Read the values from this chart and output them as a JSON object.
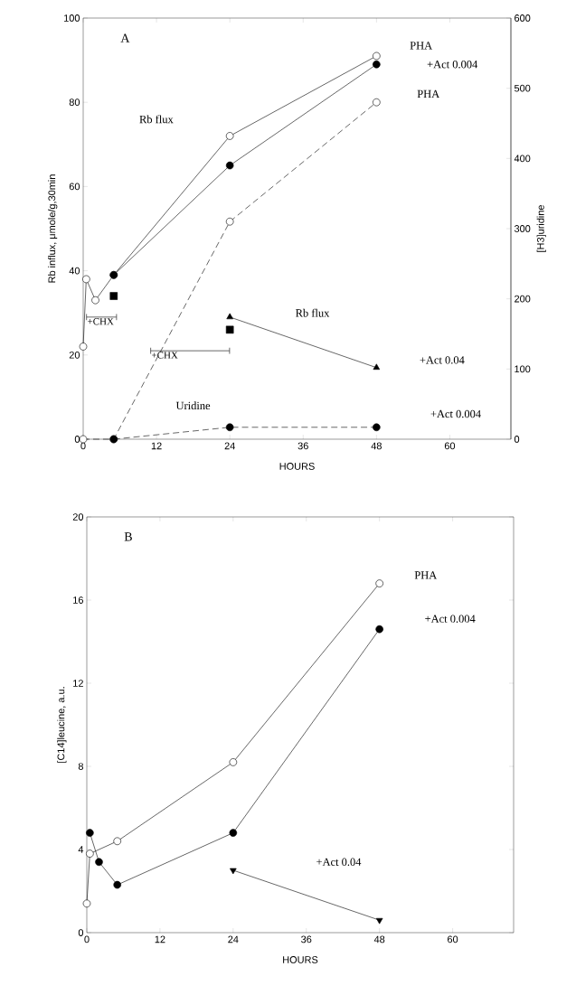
{
  "chart_data": [
    {
      "type": "line",
      "title": "A",
      "xlabel": "HOURS",
      "ylabel": "Rb influx, μmole/g,30min",
      "y2label": "[H3]uridine",
      "xlim": [
        0,
        70
      ],
      "xticks": [
        0,
        12,
        24,
        36,
        48,
        60
      ],
      "ylim": [
        0,
        100
      ],
      "yticks": [
        0,
        20,
        40,
        60,
        80,
        100
      ],
      "y2lim": [
        0,
        600
      ],
      "y2ticks": [
        0,
        100,
        200,
        300,
        400,
        500,
        600
      ],
      "grid": false,
      "series": [
        {
          "color": "#000000",
          "marker": "circle_open",
          "line_style": "solid",
          "x": [
            0,
            0.5,
            2,
            5,
            24,
            48
          ],
          "values": [
            22,
            38,
            33,
            39,
            72,
            91
          ]
        },
        {
          "color": "#000000",
          "marker": "circle",
          "line_style": "solid",
          "x": [
            5,
            24,
            48
          ],
          "values": [
            39,
            65,
            89
          ]
        },
        {
          "type": "scatter",
          "color": "#000000",
          "marker": "square",
          "x": [
            5,
            24
          ],
          "values": [
            34,
            26
          ]
        },
        {
          "color": "#000000",
          "marker": "triangle",
          "line_style": "solid",
          "x": [
            24,
            48
          ],
          "values": [
            29,
            17
          ]
        },
        {
          "axis": "y2",
          "color": "#000000",
          "marker": "circle_open",
          "line_style": "dashed",
          "x": [
            0,
            5,
            24,
            48
          ],
          "values": [
            0,
            0,
            310,
            480
          ]
        },
        {
          "axis": "y2",
          "color": "#000000",
          "marker": "circle",
          "line_style": "dashed",
          "x": [
            5,
            24,
            48
          ],
          "values": [
            0,
            17,
            17
          ]
        },
        {
          "name": "+CHX",
          "color": "#000000",
          "marker": "none",
          "line_style": "solid",
          "x": [
            0.5,
            5.5
          ],
          "values": [
            29,
            29
          ]
        },
        {
          "name": "+CHX",
          "color": "#000000",
          "marker": "none",
          "line_style": "solid",
          "x": [
            11,
            24
          ],
          "values": [
            21,
            21
          ]
        }
      ],
      "annotations": [
        "Rb flux",
        "Rb flux",
        "PHA",
        "+Act 0.004",
        "PHA",
        "+Act 0.04",
        "Uridine",
        "+Act 0.004"
      ]
    },
    {
      "type": "line",
      "title": "B",
      "xlabel": "HOURS",
      "ylabel": "[C14]leucine, a.u.",
      "xlim": [
        0,
        70
      ],
      "xticks": [
        0,
        12,
        24,
        36,
        48,
        60
      ],
      "ylim": [
        0,
        20
      ],
      "yticks": [
        0,
        4,
        8,
        12,
        16,
        20
      ],
      "grid": false,
      "legend": false,
      "series": [
        {
          "color": "#000000",
          "marker": "circle_open",
          "line_style": "solid",
          "x": [
            0,
            0.5,
            5,
            24,
            48
          ],
          "values": [
            1.4,
            3.8,
            4.4,
            8.2,
            16.8
          ]
        },
        {
          "color": "#000000",
          "marker": "circle",
          "line_style": "solid",
          "x": [
            0.5,
            2,
            5,
            24,
            48
          ],
          "values": [
            4.8,
            3.4,
            2.3,
            4.8,
            14.6
          ]
        },
        {
          "color": "#000000",
          "marker": "triangle_down",
          "line_style": "solid",
          "x": [
            24,
            48
          ],
          "values": [
            3.0,
            0.6
          ]
        }
      ],
      "annotations": [
        "PHA",
        "+Act 0.004",
        "+Act 0.04"
      ]
    }
  ]
}
